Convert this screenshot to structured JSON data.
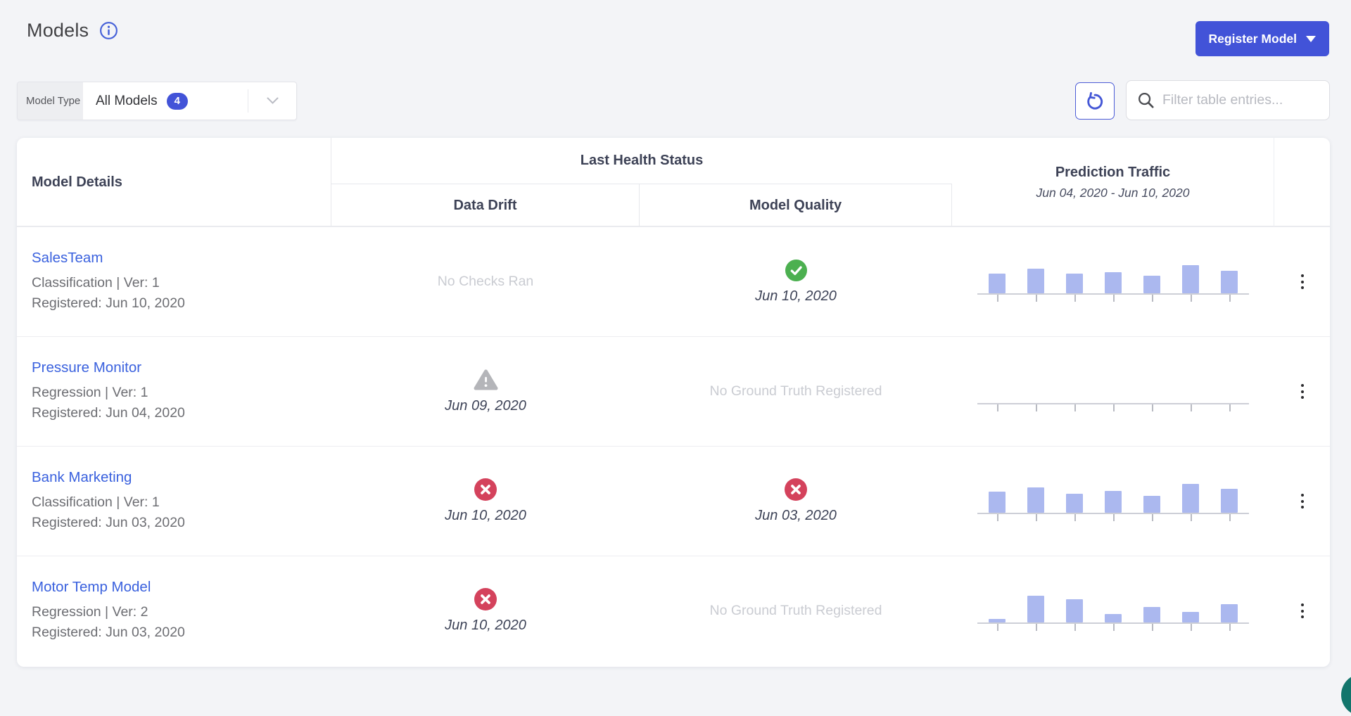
{
  "header": {
    "title": "Models",
    "register_button_label": "Register Model"
  },
  "filter": {
    "model_type_label": "Model Type",
    "selected_option": "All Models",
    "count_badge": "4",
    "search_placeholder": "Filter table entries..."
  },
  "table": {
    "columns": {
      "model_details": "Model Details",
      "last_health_status": "Last Health Status",
      "data_drift": "Data Drift",
      "model_quality": "Model Quality",
      "prediction_traffic": "Prediction Traffic",
      "prediction_traffic_range": "Jun 04, 2020 - Jun 10, 2020"
    },
    "rows": [
      {
        "name": "SalesTeam",
        "meta": "Classification | Ver: 1",
        "registered": "Registered: Jun 10, 2020",
        "data_drift": {
          "status": "none",
          "text": "No Checks Ran"
        },
        "model_quality": {
          "status": "pass",
          "date": "Jun 10, 2020"
        },
        "sparkline": [
          64,
          80,
          64,
          68,
          57,
          91,
          73
        ]
      },
      {
        "name": "Pressure Monitor",
        "meta": "Regression | Ver: 1",
        "registered": "Registered: Jun 04, 2020",
        "data_drift": {
          "status": "warning",
          "date": "Jun 09, 2020"
        },
        "model_quality": {
          "status": "none",
          "text": "No Ground Truth Registered"
        },
        "sparkline": [
          0,
          0,
          0,
          0,
          0,
          0,
          0
        ]
      },
      {
        "name": "Bank Marketing",
        "meta": "Classification | Ver: 1",
        "registered": "Registered: Jun 03, 2020",
        "data_drift": {
          "status": "fail",
          "date": "Jun 10, 2020"
        },
        "model_quality": {
          "status": "fail",
          "date": "Jun 03, 2020"
        },
        "sparkline": [
          68,
          82,
          61,
          70,
          55,
          93,
          77
        ]
      },
      {
        "name": "Motor Temp Model",
        "meta": "Regression | Ver: 2",
        "registered": "Registered: Jun 03, 2020",
        "data_drift": {
          "status": "fail",
          "date": "Jun 10, 2020"
        },
        "model_quality": {
          "status": "none",
          "text": "No Ground Truth Registered"
        },
        "sparkline": [
          11,
          86,
          75,
          27,
          50,
          34,
          59
        ]
      }
    ]
  },
  "colors": {
    "accent_blue": "#4253d8",
    "link_blue": "#3a61de",
    "status_pass": "#4cb050",
    "status_fail": "#d4425c",
    "status_warning": "#b4b5b9",
    "sparkline_bar": "#abb8ef",
    "page_background": "#f3f4f7"
  }
}
